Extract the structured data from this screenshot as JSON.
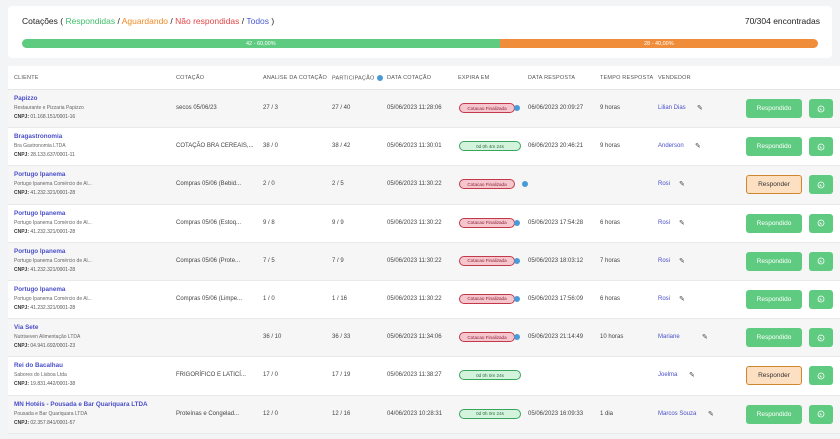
{
  "header": {
    "title_prefix": "Cotações ( ",
    "respondidas": "Respondidas",
    "sep1": " / ",
    "aguardando": "Aguardando",
    "sep2": " / ",
    "nao_respondidas": "Não respondidas",
    "sep3": " / ",
    "todos": "Todos",
    "title_suffix": " )",
    "count": "70/304 encontradas"
  },
  "progress": {
    "responded_label": "42 - 60,00%",
    "responded_fraction": 0.6,
    "pending_label": "28 - 40,00%",
    "pending_fraction": 0.4,
    "colors": {
      "responded": "#5fcb80",
      "pending": "#f08d3a"
    }
  },
  "columns": {
    "cliente": "CLIENTE",
    "cotacao": "COTAÇÃO",
    "analise": "ANALISE DA COTAÇÃO",
    "participacao": "PARTICIPAÇÃO",
    "data_cotacao": "DATA COTAÇÃO",
    "expira": "EXPIRA EM",
    "data_resposta": "DATA RESPOSTA",
    "tempo": "TEMPO RESPOSTA",
    "vendedor": "VENDEDOR"
  },
  "rows": [
    {
      "nome": "Papizzo",
      "razao": "Restaurante e Pizzaria Papizzo",
      "cnpj_label": "CNPJ:",
      "cnpj": "01.168.151/0001-16",
      "cotacao": "secos 05/06/23",
      "analise": "27 / 3",
      "participacao": "27 / 40",
      "data_cotacao": "05/06/2023 11:28:06",
      "expira": "Cotacao Finalizada",
      "expira_type": "fin",
      "data_resposta": "06/06/2023 20:09:27",
      "tempo": "9 horas",
      "vendedor": "Lilian Dias",
      "acao": "Respondido",
      "acao_type": "ok"
    },
    {
      "nome": "Bragastronomia",
      "razao": "Bra Gastronomia LTDA",
      "cnpj_label": "CNPJ:",
      "cnpj": "28.133.637/0001-11",
      "cotacao": "COTAÇÃO BRA CEREAIS,...",
      "analise": "38 / 0",
      "participacao": "38 / 42",
      "data_cotacao": "05/06/2023 11:30:01",
      "expira": "0d 0h 4m 24s",
      "expira_type": "time",
      "data_resposta": "06/06/2023 20:46:21",
      "tempo": "9 horas",
      "vendedor": "Anderson",
      "acao": "Respondido",
      "acao_type": "ok"
    },
    {
      "nome": "Portugo Ipanema",
      "razao": "Portugo Ipanema Comércio de Al...",
      "cnpj_label": "CNPJ:",
      "cnpj": "41.232.321/0001-28",
      "cotacao": "Compras 05/06 (Bebid...",
      "analise": "2 / 0",
      "participacao": "2 / 5",
      "data_cotacao": "05/06/2023 11:30:22",
      "expira": "Cotacao Finalizada",
      "expira_type": "fin",
      "data_resposta": "",
      "tempo": "",
      "vendedor": "Rosi",
      "acao": "Responder",
      "acao_type": "todo"
    },
    {
      "nome": "Portugo Ipanema",
      "razao": "Portugo Ipanema Comércio de Al...",
      "cnpj_label": "CNPJ:",
      "cnpj": "41.232.321/0001-28",
      "cotacao": "Compras 05/06 (Estoq...",
      "analise": "9 / 8",
      "participacao": "9 / 9",
      "data_cotacao": "05/06/2023 11:30:22",
      "expira": "Cotacao Finalizada",
      "expira_type": "fin",
      "data_resposta": "05/06/2023 17:54:28",
      "tempo": "6 horas",
      "vendedor": "Rosi",
      "acao": "Respondido",
      "acao_type": "ok"
    },
    {
      "nome": "Portugo Ipanema",
      "razao": "Portugo Ipanema Comércio de Al...",
      "cnpj_label": "CNPJ:",
      "cnpj": "41.232.321/0001-28",
      "cotacao": "Compras 05/06 (Prote...",
      "analise": "7 / 5",
      "participacao": "7 / 9",
      "data_cotacao": "05/06/2023 11:30:22",
      "expira": "Cotacao Finalizada",
      "expira_type": "fin",
      "data_resposta": "05/06/2023 18:03:12",
      "tempo": "7 horas",
      "vendedor": "Rosi",
      "acao": "Respondido",
      "acao_type": "ok"
    },
    {
      "nome": "Portugo Ipanema",
      "razao": "Portugo Ipanema Comércio de Al...",
      "cnpj_label": "CNPJ:",
      "cnpj": "41.232.321/0001-28",
      "cotacao": "Compras 05/06 (Limpe...",
      "analise": "1 / 0",
      "participacao": "1 / 16",
      "data_cotacao": "05/06/2023 11:30:22",
      "expira": "Cotacao Finalizada",
      "expira_type": "fin",
      "data_resposta": "05/06/2023 17:56:09",
      "tempo": "6 horas",
      "vendedor": "Rosi",
      "acao": "Respondido",
      "acao_type": "ok"
    },
    {
      "nome": "Via Sete",
      "razao": "Nutriseven Alimentação LTDA",
      "cnpj_label": "CNPJ:",
      "cnpj": "04.941.692/0001-23",
      "cotacao": "",
      "analise": "36 / 10",
      "participacao": "36 / 33",
      "data_cotacao": "05/06/2023 11:34:06",
      "expira": "Cotacao Finalizada",
      "expira_type": "fin",
      "data_resposta": "05/06/2023 21:14:49",
      "tempo": "10 horas",
      "vendedor": "Mariane",
      "acao": "Respondido",
      "acao_type": "ok"
    },
    {
      "nome": "Rei do Bacalhau",
      "razao": "Sabores do Lisboa Ltda",
      "cnpj_label": "CNPJ:",
      "cnpj": "19.831.442/0001-38",
      "cotacao": "FRIGORÍFICO E LATICÍ...",
      "analise": "17 / 0",
      "participacao": "17 / 19",
      "data_cotacao": "05/06/2023 11:38:27",
      "expira": "0d 0h 0m 24s",
      "expira_type": "time",
      "data_resposta": "",
      "tempo": "",
      "vendedor": "Joelma",
      "acao": "Responder",
      "acao_type": "todo"
    },
    {
      "nome": "MN Hotéis - Pousada e Bar Quariquara LTDA",
      "razao": "Pousada e Bar Quariquara LTDA",
      "cnpj_label": "CNPJ:",
      "cnpj": "02.357.841/0001-57",
      "cotacao": "Proteínas e Congelad...",
      "analise": "12 / 0",
      "participacao": "12 / 16",
      "data_cotacao": "04/06/2023 10:28:31",
      "expira": "0d 0h 0m 24s",
      "expira_type": "time",
      "data_resposta": "05/06/2023 16:09:33",
      "tempo": "1 dia",
      "vendedor": "Marcos Souza",
      "acao": "Respondido",
      "acao_type": "ok"
    }
  ]
}
